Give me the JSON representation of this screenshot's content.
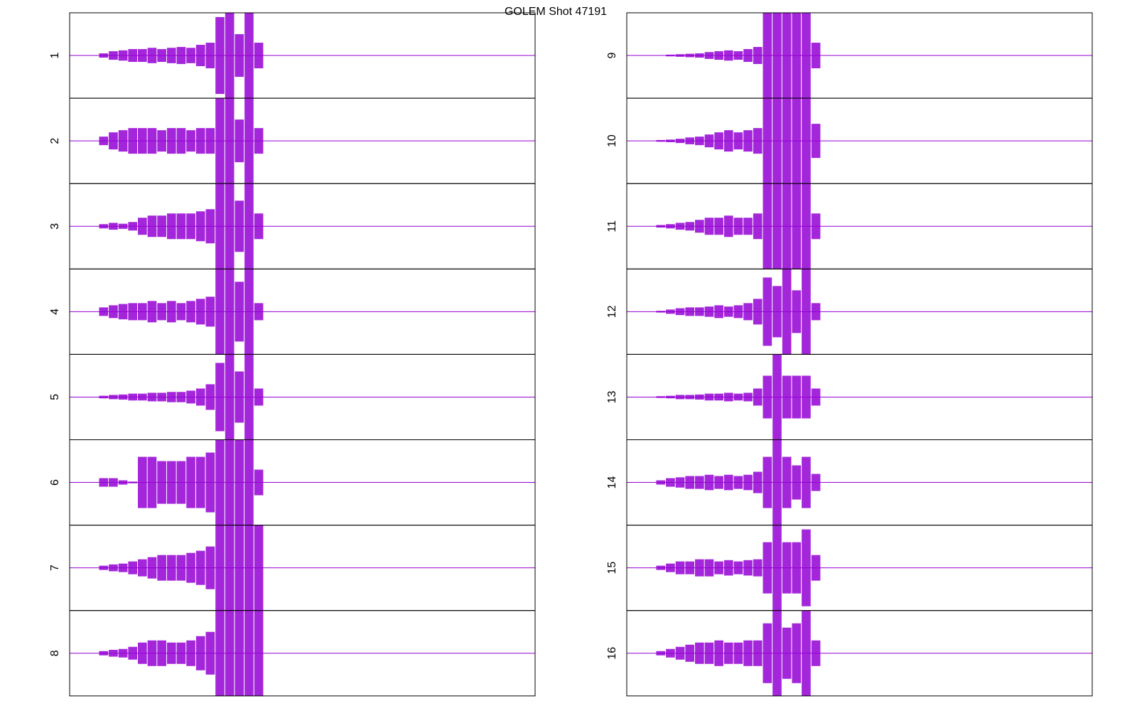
{
  "title": "GOLEM Shot 47191",
  "chart_data": [
    {
      "type": "line",
      "ylabel": "1",
      "color": "#9400d3",
      "ylim": [
        -1,
        1
      ],
      "values": [
        0,
        0,
        0,
        0.05,
        0.1,
        0.12,
        0.15,
        0.15,
        0.18,
        0.15,
        0.18,
        0.2,
        0.18,
        0.25,
        0.3,
        0.9,
        1,
        0.5,
        1,
        0.3,
        0,
        0,
        0,
        0,
        0,
        0,
        0,
        0,
        0,
        0,
        0,
        0,
        0,
        0,
        0,
        0,
        0,
        0,
        0,
        0,
        0,
        0,
        0,
        0,
        0,
        0,
        0,
        0
      ]
    },
    {
      "type": "line",
      "ylabel": "2",
      "color": "#9400d3",
      "ylim": [
        -1,
        1
      ],
      "values": [
        0,
        0,
        0,
        0.1,
        0.2,
        0.25,
        0.3,
        0.3,
        0.3,
        0.25,
        0.3,
        0.3,
        0.25,
        0.3,
        0.3,
        1,
        1,
        0.5,
        1,
        0.3,
        0,
        0,
        0,
        0,
        0,
        0,
        0,
        0,
        0,
        0,
        0,
        0,
        0,
        0,
        0,
        0,
        0,
        0,
        0,
        0,
        0,
        0,
        0,
        0,
        0,
        0,
        0,
        0
      ]
    },
    {
      "type": "line",
      "ylabel": "3",
      "color": "#9400d3",
      "ylim": [
        -1,
        1
      ],
      "values": [
        0,
        0,
        0,
        0.05,
        0.08,
        0.06,
        0.1,
        0.2,
        0.25,
        0.25,
        0.3,
        0.3,
        0.3,
        0.35,
        0.4,
        1,
        1,
        0.6,
        1,
        0.3,
        0,
        0,
        0,
        0,
        0,
        0,
        0,
        0,
        0,
        0,
        0,
        0,
        0,
        0,
        0,
        0,
        0,
        0,
        0,
        0,
        0,
        0,
        0,
        0,
        0,
        0,
        0,
        0
      ]
    },
    {
      "type": "line",
      "ylabel": "4",
      "color": "#9400d3",
      "ylim": [
        -1,
        1
      ],
      "values": [
        0,
        0,
        0,
        0.1,
        0.15,
        0.18,
        0.2,
        0.2,
        0.25,
        0.2,
        0.25,
        0.2,
        0.25,
        0.3,
        0.35,
        1,
        1,
        0.7,
        1,
        0.2,
        0,
        0,
        0,
        0,
        0,
        0,
        0,
        0,
        0,
        0,
        0,
        0,
        0,
        0,
        0,
        0,
        0,
        0,
        0,
        0,
        0,
        0,
        0,
        0,
        0,
        0,
        0,
        0
      ]
    },
    {
      "type": "line",
      "ylabel": "5",
      "color": "#9400d3",
      "ylim": [
        -1,
        1
      ],
      "values": [
        0,
        0,
        0,
        0.03,
        0.05,
        0.06,
        0.08,
        0.08,
        0.1,
        0.1,
        0.12,
        0.12,
        0.15,
        0.2,
        0.3,
        0.8,
        1,
        0.6,
        1,
        0.2,
        0,
        0,
        0,
        0,
        0,
        0,
        0,
        0,
        0,
        0,
        0,
        0,
        0,
        0,
        0,
        0,
        0,
        0,
        0,
        0,
        0,
        0,
        0,
        0,
        0,
        0,
        0,
        0
      ]
    },
    {
      "type": "line",
      "ylabel": "6",
      "color": "#9400d3",
      "ylim": [
        -1,
        1
      ],
      "values": [
        0,
        0,
        0,
        0.1,
        0.1,
        0.05,
        0.02,
        0.6,
        0.6,
        0.5,
        0.5,
        0.5,
        0.6,
        0.6,
        0.7,
        1,
        1,
        1,
        1,
        0.3,
        0,
        0,
        0,
        0,
        0,
        0,
        0,
        0,
        0,
        0,
        0,
        0,
        0,
        0,
        0,
        0,
        0,
        0,
        0,
        0,
        0,
        0,
        0,
        0,
        0,
        0,
        0,
        0
      ]
    },
    {
      "type": "line",
      "ylabel": "7",
      "color": "#9400d3",
      "ylim": [
        -1,
        1
      ],
      "values": [
        0,
        0,
        0,
        0.05,
        0.08,
        0.1,
        0.15,
        0.2,
        0.25,
        0.3,
        0.3,
        0.3,
        0.35,
        0.4,
        0.5,
        1,
        1,
        1,
        1,
        1,
        0,
        0,
        0,
        0,
        0,
        0,
        0,
        0,
        0,
        0,
        0,
        0,
        0,
        0,
        0,
        0,
        0,
        0,
        0,
        0,
        0,
        0,
        0,
        0,
        0,
        0,
        0,
        0
      ]
    },
    {
      "type": "line",
      "ylabel": "8",
      "color": "#9400d3",
      "ylim": [
        -1,
        1
      ],
      "values": [
        0,
        0,
        0,
        0.05,
        0.08,
        0.1,
        0.15,
        0.25,
        0.3,
        0.3,
        0.25,
        0.25,
        0.3,
        0.4,
        0.5,
        1,
        1,
        1,
        1,
        1,
        0,
        0,
        0,
        0,
        0,
        0,
        0,
        0,
        0,
        0,
        0,
        0,
        0,
        0,
        0,
        0,
        0,
        0,
        0,
        0,
        0,
        0,
        0,
        0,
        0,
        0,
        0,
        0
      ]
    },
    {
      "type": "line",
      "ylabel": "9",
      "color": "#9400d3",
      "ylim": [
        -1,
        1
      ],
      "values": [
        0,
        0,
        0,
        0,
        0.02,
        0.03,
        0.04,
        0.05,
        0.08,
        0.1,
        0.12,
        0.1,
        0.15,
        0.2,
        1,
        1,
        1,
        1,
        1,
        0.3,
        0,
        0,
        0,
        0,
        0,
        0,
        0,
        0,
        0,
        0,
        0,
        0,
        0,
        0,
        0,
        0,
        0,
        0,
        0,
        0,
        0,
        0,
        0,
        0,
        0,
        0,
        0,
        0
      ]
    },
    {
      "type": "line",
      "ylabel": "10",
      "color": "#9400d3",
      "ylim": [
        -1,
        1
      ],
      "values": [
        0,
        0,
        0,
        0.02,
        0.03,
        0.05,
        0.08,
        0.1,
        0.15,
        0.2,
        0.25,
        0.2,
        0.25,
        0.3,
        1,
        1,
        1,
        1,
        1,
        0.4,
        0,
        0,
        0,
        0,
        0,
        0,
        0,
        0,
        0,
        0,
        0,
        0,
        0,
        0,
        0,
        0,
        0,
        0,
        0,
        0,
        0,
        0,
        0,
        0,
        0,
        0,
        0,
        0
      ]
    },
    {
      "type": "line",
      "ylabel": "11",
      "color": "#9400d3",
      "ylim": [
        -1,
        1
      ],
      "values": [
        0,
        0,
        0,
        0.03,
        0.05,
        0.08,
        0.1,
        0.15,
        0.2,
        0.2,
        0.25,
        0.2,
        0.2,
        0.3,
        1,
        1,
        1,
        1,
        1,
        0.3,
        0,
        0,
        0,
        0,
        0,
        0,
        0,
        0,
        0,
        0,
        0,
        0,
        0,
        0,
        0,
        0,
        0,
        0,
        0,
        0,
        0,
        0,
        0,
        0,
        0,
        0,
        0,
        0
      ]
    },
    {
      "type": "line",
      "ylabel": "12",
      "color": "#9400d3",
      "ylim": [
        -1,
        1
      ],
      "values": [
        0,
        0,
        0,
        0.02,
        0.05,
        0.08,
        0.1,
        0.1,
        0.12,
        0.15,
        0.12,
        0.15,
        0.2,
        0.3,
        0.8,
        0.6,
        1,
        0.5,
        1,
        0.2,
        0,
        0,
        0,
        0,
        0,
        0,
        0,
        0,
        0,
        0,
        0,
        0,
        0,
        0,
        0,
        0,
        0,
        0,
        0,
        0,
        0,
        0,
        0,
        0,
        0,
        0,
        0,
        0
      ]
    },
    {
      "type": "line",
      "ylabel": "13",
      "color": "#9400d3",
      "ylim": [
        -1,
        1
      ],
      "values": [
        0,
        0,
        0,
        0.02,
        0.03,
        0.05,
        0.05,
        0.06,
        0.08,
        0.08,
        0.1,
        0.08,
        0.1,
        0.2,
        0.5,
        1,
        0.5,
        0.5,
        0.5,
        0.2,
        0,
        0,
        0,
        0,
        0,
        0,
        0,
        0,
        0,
        0,
        0,
        0,
        0,
        0,
        0,
        0,
        0,
        0,
        0,
        0,
        0,
        0,
        0,
        0,
        0,
        0,
        0,
        0
      ]
    },
    {
      "type": "line",
      "ylabel": "14",
      "color": "#9400d3",
      "ylim": [
        -1,
        1
      ],
      "values": [
        0,
        0,
        0,
        0.05,
        0.1,
        0.12,
        0.15,
        0.15,
        0.18,
        0.15,
        0.18,
        0.15,
        0.18,
        0.25,
        0.6,
        1,
        0.6,
        0.4,
        0.6,
        0.2,
        0,
        0,
        0,
        0,
        0,
        0,
        0,
        0,
        0,
        0,
        0,
        0,
        0,
        0,
        0,
        0,
        0,
        0,
        0,
        0,
        0,
        0,
        0,
        0,
        0,
        0,
        0,
        0
      ]
    },
    {
      "type": "line",
      "ylabel": "15",
      "color": "#9400d3",
      "ylim": [
        -1,
        1
      ],
      "values": [
        0,
        0,
        0,
        0.05,
        0.1,
        0.15,
        0.15,
        0.2,
        0.2,
        0.15,
        0.18,
        0.15,
        0.18,
        0.2,
        0.6,
        1,
        0.6,
        0.6,
        0.9,
        0.3,
        0,
        0,
        0,
        0,
        0,
        0,
        0,
        0,
        0,
        0,
        0,
        0,
        0,
        0,
        0,
        0,
        0,
        0,
        0,
        0,
        0,
        0,
        0,
        0,
        0,
        0,
        0,
        0
      ]
    },
    {
      "type": "line",
      "ylabel": "16",
      "color": "#9400d3",
      "ylim": [
        -1,
        1
      ],
      "values": [
        0,
        0,
        0,
        0.05,
        0.1,
        0.15,
        0.2,
        0.25,
        0.25,
        0.3,
        0.25,
        0.25,
        0.3,
        0.3,
        0.7,
        1,
        0.6,
        0.7,
        1,
        0.3,
        0,
        0,
        0,
        0,
        0,
        0,
        0,
        0,
        0,
        0,
        0,
        0,
        0,
        0,
        0,
        0,
        0,
        0,
        0,
        0,
        0,
        0,
        0,
        0,
        0,
        0,
        0,
        0
      ]
    }
  ]
}
